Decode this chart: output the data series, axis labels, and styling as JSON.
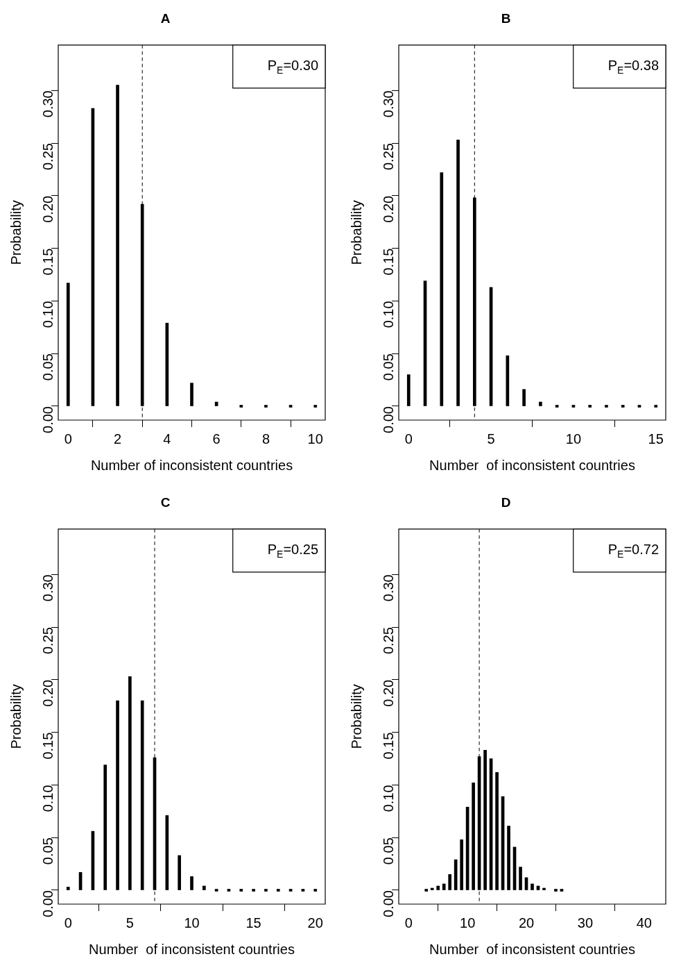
{
  "chart_data": [
    {
      "type": "bar",
      "title": "A",
      "xlabel": "Number of inconsistent countries",
      "ylabel": "Probability",
      "color": "#000000",
      "x": [
        0,
        1,
        2,
        3,
        4,
        5,
        6,
        7,
        8,
        9,
        10
      ],
      "values": [
        0.117,
        0.283,
        0.305,
        0.192,
        0.079,
        0.022,
        0.004,
        0,
        0,
        0,
        0
      ],
      "xlim": [
        -0.4,
        10.4
      ],
      "xticks": [
        0,
        2,
        4,
        6,
        8,
        10
      ],
      "ylim": [
        -0.0132,
        0.3432
      ],
      "yticks": [
        {
          "value": 0,
          "label": "0.00"
        },
        {
          "value": 0.05,
          "label": "0.05"
        },
        {
          "value": 0.1,
          "label": "0.10"
        },
        {
          "value": 0.15,
          "label": "0.15"
        },
        {
          "value": 0.2,
          "label": "0.20"
        },
        {
          "value": 0.25,
          "label": "0.25"
        },
        {
          "value": 0.3,
          "label": "0.30"
        }
      ],
      "ref_lines": [
        {
          "axis": "x",
          "value": 3,
          "line_style": "dashed"
        }
      ],
      "annotations": [
        "P$_{E}$=0.30"
      ]
    },
    {
      "type": "bar",
      "title": "B",
      "xlabel": "Number  of inconsistent countries",
      "ylabel": "Probability",
      "color": "#000000",
      "x": [
        0,
        1,
        2,
        3,
        4,
        5,
        6,
        7,
        8,
        9,
        10,
        11,
        12,
        13,
        14,
        15
      ],
      "values": [
        0.03,
        0.119,
        0.222,
        0.253,
        0.198,
        0.113,
        0.048,
        0.016,
        0.004,
        0,
        0,
        0,
        0,
        0,
        0,
        0
      ],
      "xlim": [
        -0.6,
        15.6
      ],
      "xticks": [
        0,
        5,
        10,
        15
      ],
      "ylim": [
        -0.0132,
        0.3432
      ],
      "yticks": [
        {
          "value": 0,
          "label": "0.00"
        },
        {
          "value": 0.05,
          "label": "0.05"
        },
        {
          "value": 0.1,
          "label": "0.10"
        },
        {
          "value": 0.15,
          "label": "0.15"
        },
        {
          "value": 0.2,
          "label": "0.20"
        },
        {
          "value": 0.25,
          "label": "0.25"
        },
        {
          "value": 0.3,
          "label": "0.30"
        }
      ],
      "ref_lines": [
        {
          "axis": "x",
          "value": 4,
          "line_style": "dashed"
        }
      ],
      "annotations": [
        "P$_{E}$=0.38"
      ]
    },
    {
      "type": "bar",
      "title": "C",
      "xlabel": "Number  of inconsistent countries",
      "ylabel": "Probability",
      "color": "#000000",
      "x": [
        0,
        1,
        2,
        3,
        4,
        5,
        6,
        7,
        8,
        9,
        10,
        11,
        12,
        13,
        14,
        15,
        16,
        17,
        18,
        19,
        20
      ],
      "values": [
        0.003,
        0.017,
        0.056,
        0.119,
        0.18,
        0.203,
        0.18,
        0.126,
        0.071,
        0.033,
        0.013,
        0.004,
        0,
        0,
        0,
        0,
        0,
        0,
        0,
        0,
        0
      ],
      "xlim": [
        -0.8,
        20.8
      ],
      "xticks": [
        0,
        5,
        10,
        15,
        20
      ],
      "ylim": [
        -0.0132,
        0.3432
      ],
      "yticks": [
        {
          "value": 0,
          "label": "0.00"
        },
        {
          "value": 0.05,
          "label": "0.05"
        },
        {
          "value": 0.1,
          "label": "0.10"
        },
        {
          "value": 0.15,
          "label": "0.15"
        },
        {
          "value": 0.2,
          "label": "0.20"
        },
        {
          "value": 0.25,
          "label": "0.25"
        },
        {
          "value": 0.3,
          "label": "0.30"
        }
      ],
      "ref_lines": [
        {
          "axis": "x",
          "value": 7,
          "line_style": "dashed"
        }
      ],
      "annotations": [
        "P$_{E}$=0.25"
      ]
    },
    {
      "type": "bar",
      "title": "D",
      "xlabel": "Number  of inconsistent countries",
      "ylabel": "Probability",
      "color": "#000000",
      "x": [
        3,
        4,
        5,
        6,
        7,
        8,
        9,
        10,
        11,
        12,
        13,
        14,
        15,
        16,
        17,
        18,
        19,
        20,
        21,
        22,
        23,
        25,
        26
      ],
      "values": [
        0,
        0.001,
        0.004,
        0.006,
        0.015,
        0.029,
        0.048,
        0.079,
        0.102,
        0.127,
        0.133,
        0.125,
        0.112,
        0.089,
        0.061,
        0.041,
        0.022,
        0.012,
        0.006,
        0.004,
        0.001,
        0,
        0
      ],
      "xlim": [
        -1.68,
        43.68
      ],
      "xticks": [
        0,
        10,
        20,
        30,
        40
      ],
      "ylim": [
        -0.0132,
        0.3432
      ],
      "yticks": [
        {
          "value": 0,
          "label": "0.00"
        },
        {
          "value": 0.05,
          "label": "0.05"
        },
        {
          "value": 0.1,
          "label": "0.10"
        },
        {
          "value": 0.15,
          "label": "0.15"
        },
        {
          "value": 0.2,
          "label": "0.20"
        },
        {
          "value": 0.25,
          "label": "0.25"
        },
        {
          "value": 0.3,
          "label": "0.30"
        }
      ],
      "ref_lines": [
        {
          "axis": "x",
          "value": 12,
          "line_style": "dashed"
        }
      ],
      "annotations": [
        "P$_{E}$=0.72"
      ]
    }
  ]
}
